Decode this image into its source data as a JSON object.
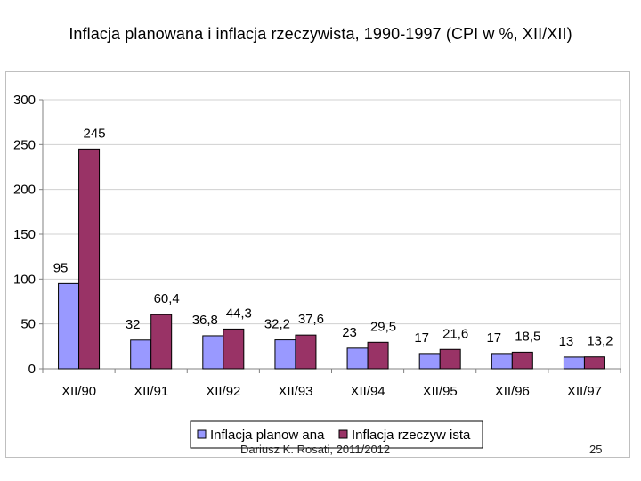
{
  "slide": {
    "title": "Inflacja planowana i inflacja rzeczywista, 1990-1997 (CPI w %, XII/XII)",
    "footer": "Dariusz K. Rosati, 2011/2012",
    "page_number": "25"
  },
  "colors": {
    "planned": "#9999ff",
    "actual": "#993366",
    "plot_background": "#ffffff",
    "gridline": "#d0d0d0",
    "axis": "#808080"
  },
  "chart_data": {
    "type": "bar",
    "title": "",
    "xlabel": "",
    "ylabel": "",
    "categories": [
      "XII/90",
      "XII/91",
      "XII/92",
      "XII/93",
      "XII/94",
      "XII/95",
      "XII/96",
      "XII/97"
    ],
    "series": [
      {
        "name": "Inflacja planow ana",
        "values": [
          95,
          32,
          36.8,
          32.2,
          23,
          17,
          17,
          13
        ],
        "labels": [
          "95",
          "32",
          "36,8",
          "32,2",
          "23",
          "17",
          "17",
          "13"
        ]
      },
      {
        "name": "Inflacja rzeczyw ista",
        "values": [
          245,
          60.4,
          44.3,
          37.6,
          29.5,
          21.6,
          18.5,
          13.2
        ],
        "labels": [
          "245",
          "60,4",
          "44,3",
          "37,6",
          "29,5",
          "21,6",
          "18,5",
          "13,2"
        ]
      }
    ],
    "ylim": [
      0,
      300
    ],
    "yticks": [
      0,
      50,
      100,
      150,
      200,
      250,
      300
    ],
    "grid": true,
    "legend": "bottom-center"
  }
}
